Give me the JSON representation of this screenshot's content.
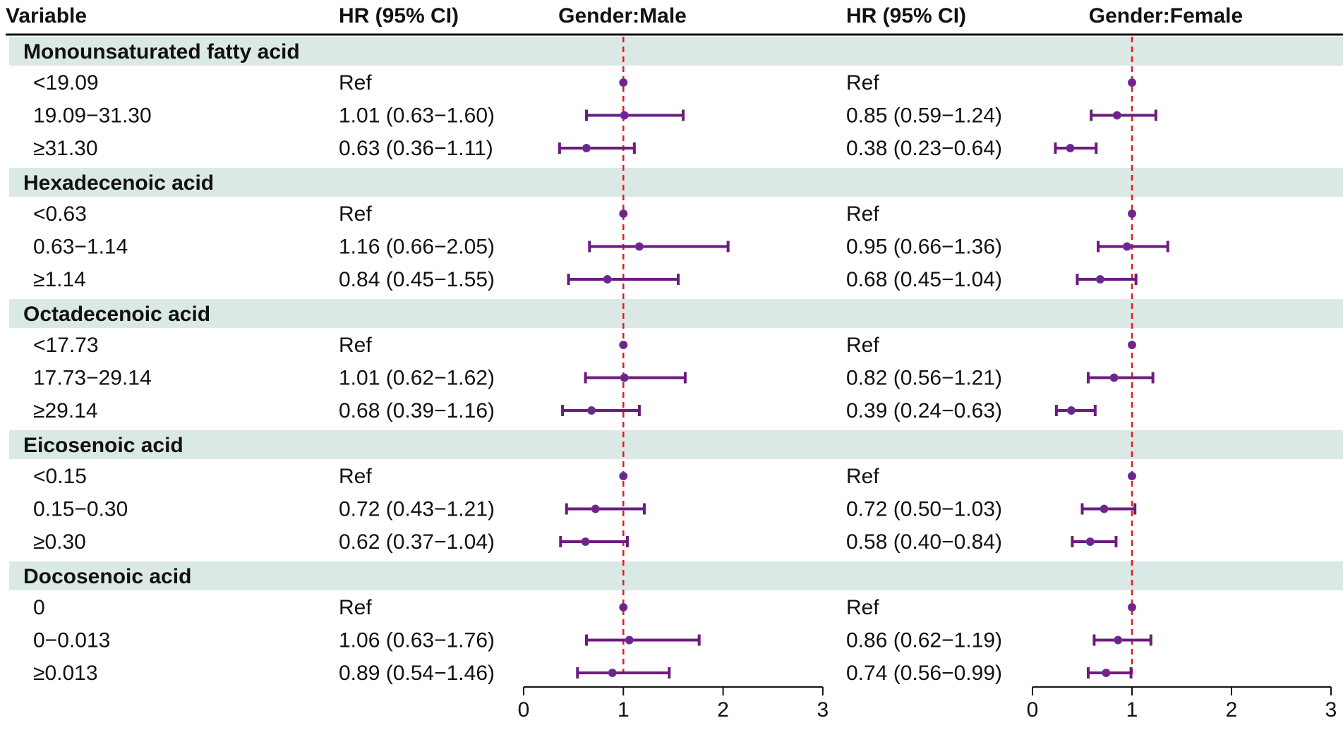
{
  "chart_data": {
    "type": "forest",
    "columns": {
      "variable": "Variable",
      "hr_male": "HR (95% CI)",
      "panel_male": "Gender:Male",
      "hr_female": "HR (95% CI)",
      "panel_female": "Gender:Female"
    },
    "reference_line": 1,
    "xlim": [
      0,
      3
    ],
    "xticks": [
      "0",
      "1",
      "2",
      "3"
    ],
    "colors": {
      "point": "#7a1f8a",
      "whisker": "#6b1c7e",
      "reference_line": "#e41a1c",
      "group_band": "#dbe9e6"
    },
    "groups": [
      {
        "name": "Monounsaturated fatty acid",
        "rows": [
          {
            "level": "<19.09",
            "male": {
              "label": "Ref",
              "hr": 1,
              "lo": 1,
              "hi": 1
            },
            "female": {
              "label": "Ref",
              "hr": 1,
              "lo": 1,
              "hi": 1
            }
          },
          {
            "level": "19.09−31.30",
            "male": {
              "label": "1.01 (0.63−1.60)",
              "hr": 1.01,
              "lo": 0.63,
              "hi": 1.6
            },
            "female": {
              "label": "0.85 (0.59−1.24)",
              "hr": 0.85,
              "lo": 0.59,
              "hi": 1.24
            }
          },
          {
            "level": "≥31.30",
            "male": {
              "label": "0.63 (0.36−1.11)",
              "hr": 0.63,
              "lo": 0.36,
              "hi": 1.11
            },
            "female": {
              "label": "0.38 (0.23−0.64)",
              "hr": 0.38,
              "lo": 0.23,
              "hi": 0.64
            }
          }
        ]
      },
      {
        "name": "Hexadecenoic acid",
        "rows": [
          {
            "level": "<0.63",
            "male": {
              "label": "Ref",
              "hr": 1,
              "lo": 1,
              "hi": 1
            },
            "female": {
              "label": "Ref",
              "hr": 1,
              "lo": 1,
              "hi": 1
            }
          },
          {
            "level": "0.63−1.14",
            "male": {
              "label": "1.16 (0.66−2.05)",
              "hr": 1.16,
              "lo": 0.66,
              "hi": 2.05
            },
            "female": {
              "label": "0.95 (0.66−1.36)",
              "hr": 0.95,
              "lo": 0.66,
              "hi": 1.36
            }
          },
          {
            "level": "≥1.14",
            "male": {
              "label": "0.84 (0.45−1.55)",
              "hr": 0.84,
              "lo": 0.45,
              "hi": 1.55
            },
            "female": {
              "label": "0.68 (0.45−1.04)",
              "hr": 0.68,
              "lo": 0.45,
              "hi": 1.04
            }
          }
        ]
      },
      {
        "name": "Octadecenoic acid",
        "rows": [
          {
            "level": "<17.73",
            "male": {
              "label": "Ref",
              "hr": 1,
              "lo": 1,
              "hi": 1
            },
            "female": {
              "label": "Ref",
              "hr": 1,
              "lo": 1,
              "hi": 1
            }
          },
          {
            "level": "17.73−29.14",
            "male": {
              "label": "1.01 (0.62−1.62)",
              "hr": 1.01,
              "lo": 0.62,
              "hi": 1.62
            },
            "female": {
              "label": "0.82 (0.56−1.21)",
              "hr": 0.82,
              "lo": 0.56,
              "hi": 1.21
            }
          },
          {
            "level": "≥29.14",
            "male": {
              "label": "0.68 (0.39−1.16)",
              "hr": 0.68,
              "lo": 0.39,
              "hi": 1.16
            },
            "female": {
              "label": "0.39 (0.24−0.63)",
              "hr": 0.39,
              "lo": 0.24,
              "hi": 0.63
            }
          }
        ]
      },
      {
        "name": "Eicosenoic acid",
        "rows": [
          {
            "level": "<0.15",
            "male": {
              "label": "Ref",
              "hr": 1,
              "lo": 1,
              "hi": 1
            },
            "female": {
              "label": "Ref",
              "hr": 1,
              "lo": 1,
              "hi": 1
            }
          },
          {
            "level": "0.15−0.30",
            "male": {
              "label": "0.72 (0.43−1.21)",
              "hr": 0.72,
              "lo": 0.43,
              "hi": 1.21
            },
            "female": {
              "label": "0.72 (0.50−1.03)",
              "hr": 0.72,
              "lo": 0.5,
              "hi": 1.03
            }
          },
          {
            "level": "≥0.30",
            "male": {
              "label": "0.62 (0.37−1.04)",
              "hr": 0.62,
              "lo": 0.37,
              "hi": 1.04
            },
            "female": {
              "label": "0.58 (0.40−0.84)",
              "hr": 0.58,
              "lo": 0.4,
              "hi": 0.84
            }
          }
        ]
      },
      {
        "name": "Docosenoic acid",
        "rows": [
          {
            "level": "0",
            "male": {
              "label": "Ref",
              "hr": 1,
              "lo": 1,
              "hi": 1
            },
            "female": {
              "label": "Ref",
              "hr": 1,
              "lo": 1,
              "hi": 1
            }
          },
          {
            "level": "0−0.013",
            "male": {
              "label": "1.06 (0.63−1.76)",
              "hr": 1.06,
              "lo": 0.63,
              "hi": 1.76
            },
            "female": {
              "label": "0.86 (0.62−1.19)",
              "hr": 0.86,
              "lo": 0.62,
              "hi": 1.19
            }
          },
          {
            "level": "≥0.013",
            "male": {
              "label": "0.89 (0.54−1.46)",
              "hr": 0.89,
              "lo": 0.54,
              "hi": 1.46
            },
            "female": {
              "label": "0.74 (0.56−0.99)",
              "hr": 0.74,
              "lo": 0.56,
              "hi": 0.99
            }
          }
        ]
      }
    ]
  }
}
